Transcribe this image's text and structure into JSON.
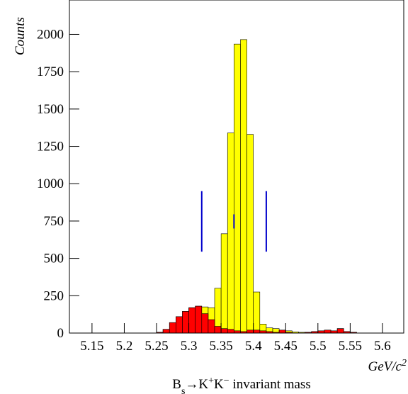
{
  "chart_data": {
    "type": "histogram",
    "y_label": "Counts",
    "x_label_parts": [
      {
        "text": "GeV/c"
      },
      {
        "text": "2",
        "shift": "sup"
      }
    ],
    "title_parts": [
      {
        "text": "B"
      },
      {
        "text": "s",
        "shift": "sub"
      },
      {
        "text": "→K"
      },
      {
        "text": "+",
        "shift": "sup"
      },
      {
        "text": "K"
      },
      {
        "text": "−",
        "shift": "sup"
      },
      {
        "text": " invariant mass"
      }
    ],
    "bins": [
      5.25,
      5.26,
      5.27,
      5.28,
      5.29,
      5.3,
      5.31,
      5.32,
      5.33,
      5.34,
      5.35,
      5.36,
      5.37,
      5.38,
      5.39,
      5.4,
      5.41,
      5.42,
      5.43,
      5.44,
      5.45,
      5.46,
      5.47,
      5.48,
      5.49,
      5.5,
      5.51,
      5.52,
      5.53,
      5.54,
      5.55,
      5.56
    ],
    "series": [
      {
        "color": "#ffff00",
        "values": [
          5,
          25,
          70,
          110,
          145,
          170,
          180,
          175,
          170,
          300,
          665,
          1340,
          1935,
          1965,
          1330,
          275,
          60,
          35,
          30,
          20,
          15,
          8,
          5,
          5,
          10,
          15,
          20,
          15,
          30,
          10,
          5
        ]
      },
      {
        "color": "#ff0000",
        "values": [
          5,
          25,
          70,
          110,
          145,
          170,
          180,
          130,
          90,
          45,
          30,
          25,
          15,
          10,
          20,
          20,
          15,
          10,
          5,
          20,
          5,
          0,
          0,
          5,
          10,
          15,
          20,
          15,
          30,
          10,
          5
        ]
      }
    ],
    "markers": [
      {
        "x": 5.32,
        "y": [
          545,
          950
        ],
        "color": "#0000cc"
      },
      {
        "x": 5.37,
        "y": [
          700,
          795
        ],
        "color": "#0000cc"
      },
      {
        "x": 5.42,
        "y": [
          545,
          950
        ],
        "color": "#0000cc"
      }
    ],
    "xlim": [
      5.115,
      5.633
    ],
    "ylim": [
      0,
      2230
    ],
    "xticks": [
      5.15,
      5.2,
      5.25,
      5.3,
      5.35,
      5.4,
      5.45,
      5.5,
      5.55,
      5.6
    ],
    "yticks": [
      0,
      250,
      500,
      750,
      1000,
      1250,
      1500,
      1750,
      2000
    ]
  }
}
